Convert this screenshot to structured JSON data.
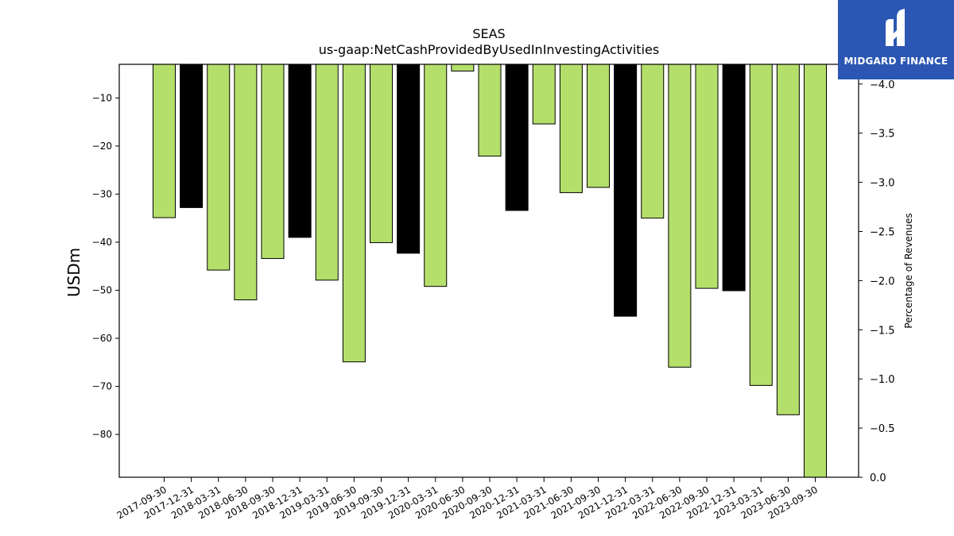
{
  "chart_data": {
    "type": "bar",
    "title": "SEAS",
    "subtitle": "us-gaap:NetCashProvidedByUsedInInvestingActivities",
    "ylabel": "USDm",
    "ylabel_right": "Percentage of Revenues",
    "ylim": [
      -88.9,
      -3.0
    ],
    "ylim_right": [
      0.0,
      -4.2
    ],
    "yticks": [
      -10,
      -20,
      -30,
      -40,
      -50,
      -60,
      -70,
      -80
    ],
    "yticks_right": [
      -4.0,
      -3.5,
      -3.0,
      -2.5,
      -2.0,
      -1.5,
      -1.0,
      -0.5,
      0.0
    ],
    "yticks_right_labels": [
      "−4.0",
      "−3.5",
      "−3.0",
      "−2.5",
      "−2.0",
      "−1.5",
      "−1.0",
      "−0.5",
      "0.0"
    ],
    "grid": false,
    "colors": {
      "quarter": "#b5df6b",
      "year_end": "#000000",
      "edge": "#000000"
    },
    "categories": [
      "2017-09-30",
      "2017-12-31",
      "2018-03-31",
      "2018-06-30",
      "2018-09-30",
      "2018-12-31",
      "2019-03-31",
      "2019-06-30",
      "2019-09-30",
      "2019-12-31",
      "2020-03-31",
      "2020-06-30",
      "2020-09-30",
      "2020-12-31",
      "2021-03-31",
      "2021-06-30",
      "2021-09-30",
      "2021-12-31",
      "2022-03-31",
      "2022-06-30",
      "2022-09-30",
      "2022-12-31",
      "2023-03-31",
      "2023-06-30",
      "2023-09-30"
    ],
    "values": [
      -34.9,
      -32.8,
      -45.8,
      -52.0,
      -43.4,
      -39.0,
      -47.9,
      -64.9,
      -40.1,
      -42.3,
      -49.2,
      -4.4,
      -22.1,
      -33.4,
      -15.4,
      -29.7,
      -28.6,
      -55.4,
      -35.0,
      -66.0,
      -49.6,
      -50.1,
      -69.8,
      -75.9,
      -90.0
    ],
    "is_year_end": [
      false,
      true,
      false,
      false,
      false,
      true,
      false,
      false,
      false,
      true,
      false,
      false,
      false,
      true,
      false,
      false,
      false,
      true,
      false,
      false,
      false,
      true,
      false,
      false,
      false
    ]
  },
  "logo": {
    "text": "MIDGARD FINANCE"
  }
}
